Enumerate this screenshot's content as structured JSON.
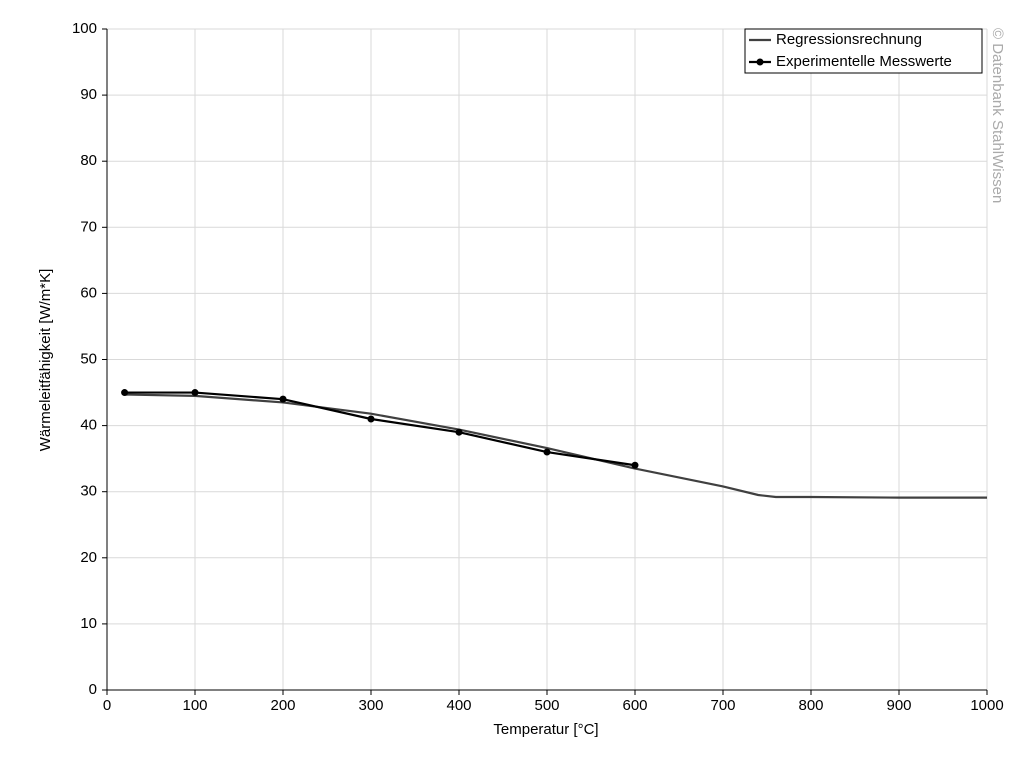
{
  "chart_data": {
    "type": "line",
    "xlabel": "Temperatur [°C]",
    "ylabel": "Wärmeleitfähigkeit [W/m*K]",
    "watermark": "© Datenbank StahlWissen",
    "series": [
      {
        "name": "Regressionsrechnung",
        "color": "#404040",
        "marker": false,
        "x": [
          20,
          100,
          200,
          300,
          400,
          500,
          600,
          700,
          740,
          760,
          800,
          900,
          1000
        ],
        "values": [
          44.7,
          44.5,
          43.5,
          41.8,
          39.4,
          36.6,
          33.5,
          30.8,
          29.5,
          29.2,
          29.2,
          29.1,
          29.1
        ]
      },
      {
        "name": "Experimentelle Messwerte",
        "color": "#000000",
        "marker": true,
        "x": [
          20,
          100,
          200,
          300,
          400,
          500,
          600
        ],
        "values": [
          45,
          45,
          44,
          41,
          39,
          36,
          34
        ]
      }
    ],
    "xlim": [
      0,
      1000
    ],
    "xticks": [
      0,
      100,
      200,
      300,
      400,
      500,
      600,
      700,
      800,
      900,
      1000
    ],
    "ylim": [
      0,
      100
    ],
    "yticks": [
      0,
      10,
      20,
      30,
      40,
      50,
      60,
      70,
      80,
      90,
      100
    ],
    "grid": true,
    "legend": "upper right"
  }
}
